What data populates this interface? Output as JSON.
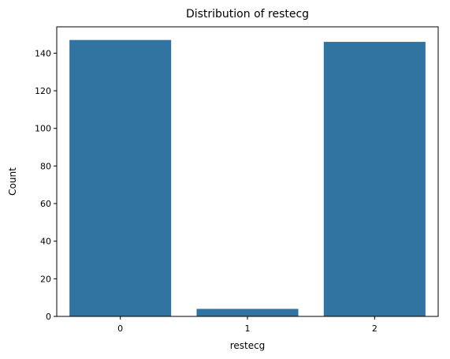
{
  "chart_data": {
    "type": "bar",
    "title": "Distribution of restecg",
    "xlabel": "restecg",
    "ylabel": "Count",
    "categories": [
      "0",
      "1",
      "2"
    ],
    "values": [
      147,
      4,
      146
    ],
    "ylim": [
      0,
      154
    ],
    "yticks": [
      0,
      20,
      40,
      60,
      80,
      100,
      120,
      140
    ],
    "bar_color": "#3274a1",
    "grid": false,
    "legend": "none"
  }
}
